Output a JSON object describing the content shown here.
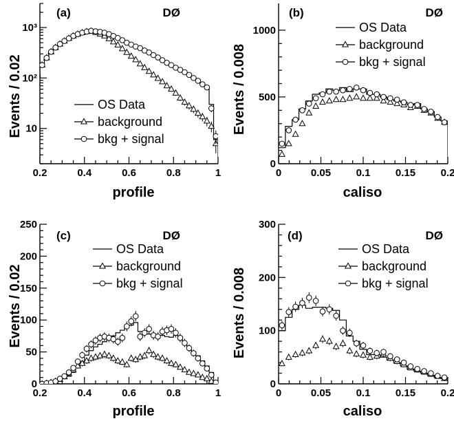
{
  "chart_data": [
    {
      "id": "a",
      "type": "line",
      "panel_label": "(a)",
      "experiment": "DØ",
      "xlabel": "profile",
      "ylabel": "Events / 0.02",
      "xlim": [
        0.2,
        1.0
      ],
      "ylim": [
        2,
        3000
      ],
      "log_y": true,
      "x_ticks": [
        0.2,
        0.4,
        0.6,
        0.8,
        1
      ],
      "y_ticks": [
        10,
        100,
        1000
      ],
      "y_tick_labels": [
        "10",
        "10²",
        "10³"
      ],
      "legend": {
        "position": "bottom-left",
        "entries": [
          "OS Data",
          "background",
          "bkg + signal"
        ]
      },
      "bin_edges": [
        0.18,
        0.2,
        0.22,
        0.24,
        0.26,
        0.28,
        0.3,
        0.32,
        0.34,
        0.36,
        0.38,
        0.4,
        0.42,
        0.44,
        0.46,
        0.48,
        0.5,
        0.52,
        0.54,
        0.56,
        0.58,
        0.6,
        0.62,
        0.64,
        0.66,
        0.68,
        0.7,
        0.72,
        0.74,
        0.76,
        0.78,
        0.8,
        0.82,
        0.84,
        0.86,
        0.88,
        0.9,
        0.92,
        0.94,
        0.96,
        0.98,
        1.0
      ],
      "series": [
        {
          "name": "OS Data",
          "style": "histogram",
          "values": [
            110,
            180,
            250,
            330,
            400,
            470,
            540,
            610,
            680,
            740,
            790,
            830,
            860,
            840,
            820,
            790,
            740,
            680,
            620,
            560,
            500,
            460,
            420,
            390,
            350,
            320,
            280,
            250,
            220,
            200,
            180,
            160,
            145,
            130,
            115,
            100,
            90,
            75,
            65,
            30,
            6
          ]
        },
        {
          "name": "background",
          "style": "triangle",
          "values": [
            110,
            180,
            250,
            330,
            400,
            470,
            540,
            610,
            680,
            740,
            790,
            830,
            850,
            800,
            740,
            680,
            600,
            520,
            450,
            380,
            320,
            270,
            230,
            190,
            160,
            135,
            115,
            98,
            84,
            70,
            60,
            50,
            40,
            33,
            28,
            24,
            20,
            17,
            14,
            11,
            5
          ]
        },
        {
          "name": "bkg + signal",
          "style": "circle",
          "values": [
            110,
            180,
            250,
            330,
            400,
            470,
            540,
            610,
            680,
            740,
            790,
            830,
            860,
            840,
            820,
            790,
            740,
            680,
            620,
            560,
            500,
            460,
            420,
            390,
            350,
            320,
            285,
            255,
            225,
            200,
            180,
            160,
            145,
            130,
            115,
            100,
            88,
            75,
            65,
            25,
            7
          ]
        }
      ]
    },
    {
      "id": "b",
      "type": "line",
      "panel_label": "(b)",
      "experiment": "DØ",
      "xlabel": "caliso",
      "ylabel": "Events / 0.008",
      "xlim": [
        0,
        0.2
      ],
      "ylim": [
        0,
        1200
      ],
      "log_y": false,
      "x_ticks": [
        0,
        0.05,
        0.1,
        0.15,
        0.2
      ],
      "y_ticks": [
        0,
        500,
        1000
      ],
      "y_tick_labels": [
        "0",
        "500",
        "1000"
      ],
      "legend": {
        "position": "top-right",
        "entries": [
          "OS Data",
          "background",
          "bkg + signal"
        ]
      },
      "bin_edges": [
        0,
        0.008,
        0.016,
        0.024,
        0.032,
        0.04,
        0.048,
        0.056,
        0.064,
        0.072,
        0.08,
        0.088,
        0.096,
        0.104,
        0.112,
        0.12,
        0.128,
        0.136,
        0.144,
        0.152,
        0.16,
        0.168,
        0.176,
        0.184,
        0.192,
        0.2
      ],
      "series": [
        {
          "name": "OS Data",
          "style": "histogram",
          "values": [
            120,
            280,
            330,
            410,
            470,
            520,
            530,
            560,
            550,
            570,
            540,
            560,
            560,
            520,
            520,
            500,
            480,
            470,
            460,
            440,
            450,
            410,
            390,
            350,
            320
          ]
        },
        {
          "name": "background",
          "style": "triangle",
          "values": [
            70,
            150,
            220,
            300,
            380,
            430,
            460,
            470,
            480,
            480,
            490,
            500,
            490,
            490,
            490,
            470,
            460,
            450,
            440,
            420,
            430,
            400,
            380,
            340,
            310
          ]
        },
        {
          "name": "bkg + signal",
          "style": "circle",
          "values": [
            150,
            250,
            330,
            400,
            450,
            490,
            520,
            540,
            540,
            550,
            560,
            570,
            550,
            530,
            520,
            500,
            490,
            480,
            460,
            440,
            440,
            410,
            390,
            350,
            310
          ]
        }
      ]
    },
    {
      "id": "c",
      "type": "line",
      "panel_label": "(c)",
      "experiment": "DØ",
      "xlabel": "profile",
      "ylabel": "Events / 0.02",
      "xlim": [
        0.2,
        1.0
      ],
      "ylim": [
        0,
        250
      ],
      "log_y": false,
      "x_ticks": [
        0.2,
        0.4,
        0.6,
        0.8,
        1
      ],
      "y_ticks": [
        0,
        50,
        100,
        150,
        200,
        250
      ],
      "y_tick_labels": [
        "0",
        "50",
        "100",
        "150",
        "200",
        "250"
      ],
      "legend": {
        "position": "top-right",
        "entries": [
          "OS Data",
          "background",
          "bkg + signal"
        ]
      },
      "bin_edges": [
        0.18,
        0.2,
        0.22,
        0.24,
        0.26,
        0.28,
        0.3,
        0.32,
        0.34,
        0.36,
        0.38,
        0.4,
        0.42,
        0.44,
        0.46,
        0.48,
        0.5,
        0.52,
        0.54,
        0.56,
        0.58,
        0.6,
        0.62,
        0.64,
        0.66,
        0.68,
        0.7,
        0.72,
        0.74,
        0.76,
        0.78,
        0.8,
        0.82,
        0.84,
        0.86,
        0.88,
        0.9,
        0.92,
        0.94,
        0.96,
        0.98,
        1.0
      ],
      "series": [
        {
          "name": "OS Data",
          "style": "histogram",
          "values": [
            0,
            0,
            1,
            2,
            4,
            6,
            9,
            12,
            18,
            26,
            35,
            45,
            52,
            58,
            62,
            66,
            70,
            75,
            80,
            84,
            88,
            92,
            96,
            82,
            80,
            78,
            76,
            76,
            76,
            74,
            73,
            76,
            70,
            64,
            56,
            50,
            44,
            36,
            28,
            18,
            3
          ]
        },
        {
          "name": "background",
          "style": "triangle",
          "values": [
            0,
            0,
            1,
            2,
            4,
            7,
            11,
            16,
            22,
            28,
            32,
            36,
            40,
            42,
            44,
            46,
            44,
            40,
            36,
            34,
            30,
            40,
            38,
            42,
            44,
            52,
            46,
            42,
            40,
            36,
            32,
            30,
            26,
            22,
            18,
            16,
            14,
            10,
            8,
            4,
            1
          ]
        },
        {
          "name": "bkg + signal",
          "style": "circle",
          "values": [
            0,
            0,
            1,
            2,
            4,
            8,
            12,
            18,
            25,
            35,
            45,
            55,
            62,
            68,
            72,
            74,
            72,
            70,
            66,
            72,
            90,
            98,
            106,
            74,
            80,
            86,
            76,
            74,
            82,
            84,
            86,
            80,
            72,
            64,
            56,
            48,
            40,
            32,
            24,
            14,
            2
          ]
        }
      ]
    },
    {
      "id": "d",
      "type": "line",
      "panel_label": "(d)",
      "experiment": "DØ",
      "xlabel": "caliso",
      "ylabel": "Events / 0.008",
      "xlim": [
        0,
        0.2
      ],
      "ylim": [
        0,
        300
      ],
      "log_y": false,
      "x_ticks": [
        0,
        0.05,
        0.1,
        0.15,
        0.2
      ],
      "y_ticks": [
        0,
        100,
        200,
        300
      ],
      "y_tick_labels": [
        "0",
        "100",
        "200",
        "300"
      ],
      "legend": {
        "position": "top-right",
        "entries": [
          "OS Data",
          "background",
          "bkg + signal"
        ]
      },
      "bin_edges": [
        0,
        0.008,
        0.016,
        0.024,
        0.032,
        0.04,
        0.048,
        0.056,
        0.064,
        0.072,
        0.08,
        0.088,
        0.096,
        0.104,
        0.112,
        0.12,
        0.128,
        0.136,
        0.144,
        0.152,
        0.16,
        0.168,
        0.176,
        0.184,
        0.192,
        0.2
      ],
      "series": [
        {
          "name": "OS Data",
          "style": "histogram",
          "values": [
            100,
            125,
            140,
            148,
            142,
            144,
            144,
            142,
            138,
            120,
            90,
            80,
            65,
            55,
            55,
            50,
            45,
            40,
            34,
            28,
            24,
            20,
            16,
            12,
            10
          ]
        },
        {
          "name": "background",
          "style": "triangle",
          "values": [
            38,
            50,
            55,
            58,
            62,
            72,
            84,
            80,
            70,
            76,
            62,
            56,
            54,
            50,
            52,
            56,
            48,
            42,
            36,
            30,
            26,
            22,
            18,
            14,
            10
          ]
        },
        {
          "name": "bkg + signal",
          "style": "circle",
          "values": [
            110,
            135,
            145,
            152,
            162,
            156,
            136,
            140,
            128,
            100,
            96,
            76,
            72,
            62,
            58,
            60,
            52,
            46,
            40,
            33,
            28,
            24,
            20,
            15,
            12
          ]
        }
      ]
    }
  ]
}
